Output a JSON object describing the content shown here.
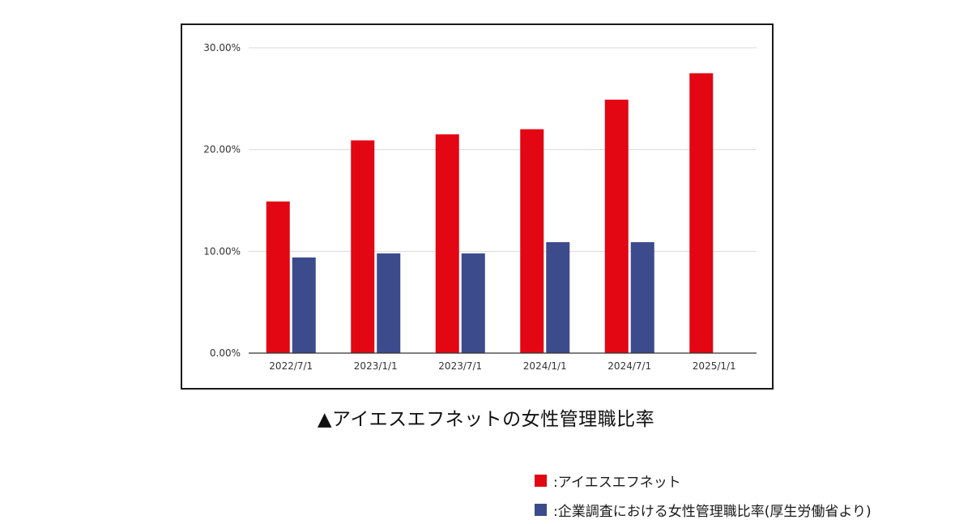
{
  "caption": "▲アイエスエフネットの女性管理職比率",
  "legend": [
    {
      "label": ":アイエスエフネット",
      "color": "#e30613"
    },
    {
      "label": ":企業調査における女性管理職比率(厚生労働省より)",
      "color": "#3c4b8c"
    }
  ],
  "chart_data": {
    "type": "bar",
    "categories": [
      "2022/7/1",
      "2023/1/1",
      "2023/7/1",
      "2024/1/1",
      "2024/7/1",
      "2025/1/1"
    ],
    "series": [
      {
        "name": "アイエスエフネット",
        "color": "#e30613",
        "values": [
          0.149,
          0.209,
          0.215,
          0.22,
          0.249,
          0.275
        ]
      },
      {
        "name": "企業調査における女性管理職比率(厚生労働省より)",
        "color": "#3c4b8c",
        "values": [
          0.094,
          0.098,
          0.098,
          0.109,
          0.109,
          null
        ]
      }
    ],
    "ylim": [
      0,
      0.3
    ],
    "yticks": [
      0,
      0.1,
      0.2,
      0.3
    ],
    "ytick_labels": [
      "0.00%",
      "10.00%",
      "20.00%",
      "30.00%"
    ],
    "grid": true,
    "legend_position": "bottom-right"
  }
}
